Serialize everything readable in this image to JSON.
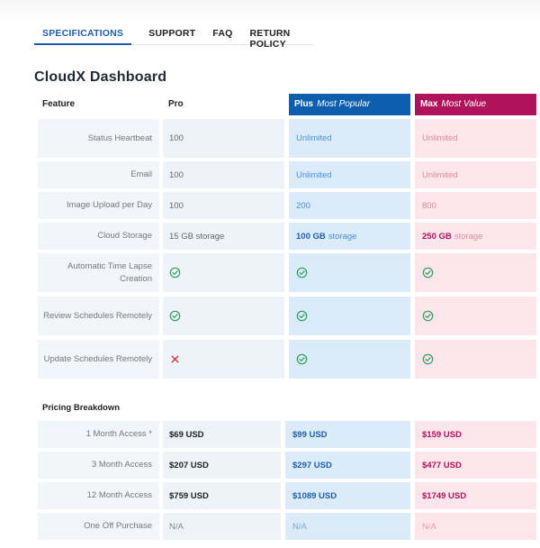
{
  "tabs": [
    {
      "label": "SPECIFICATIONS",
      "active": true
    },
    {
      "label": "SUPPORT",
      "active": false
    },
    {
      "label": "FAQ",
      "active": false
    },
    {
      "label": "RETURN POLICY",
      "active": false
    }
  ],
  "page_title": "CloudX Dashboard",
  "columns": {
    "feature": "Feature",
    "pro": "Pro",
    "plus": {
      "name": "Plus",
      "tag": "Most Popular",
      "color": "#0d5fae"
    },
    "max": {
      "name": "Max",
      "tag": "Most Value",
      "color": "#b0125c"
    }
  },
  "features": [
    {
      "label": "Status Heartbeat",
      "pro": "100",
      "plus": "Unlimited",
      "max": "Unlimited"
    },
    {
      "label": "Email",
      "pro": "100",
      "plus": "Unlimited",
      "max": "Unlimited"
    },
    {
      "label": "Image Upload per Day",
      "pro": "100",
      "plus": "200",
      "max": "800"
    },
    {
      "label": "Cloud Storage",
      "pro": "15 GB storage",
      "plus_bold": "100 GB",
      "plus_rest": "storage",
      "max_bold": "250 GB",
      "max_rest": "storage"
    },
    {
      "label": "Automatic Time Lapse Creation",
      "pro_icon": "check-circle-icon",
      "plus_icon": "check-circle-icon",
      "max_icon": "check-circle-icon"
    },
    {
      "label": "Review Schedules Remotely",
      "pro_icon": "check-circle-icon",
      "plus_icon": "check-circle-icon",
      "max_icon": "check-circle-icon"
    },
    {
      "label": "Update Schedules Remotely",
      "pro_icon": "cross-icon",
      "plus_icon": "check-circle-icon",
      "max_icon": "check-circle-icon"
    }
  ],
  "pricing": {
    "heading": "Pricing Breakdown",
    "rows": [
      {
        "label": "1 Month Access *",
        "pro": "$69 USD",
        "plus": "$99 USD",
        "max": "$159 USD"
      },
      {
        "label": "3 Month Access",
        "pro": "$207 USD",
        "plus": "$297 USD",
        "max": "$477 USD"
      },
      {
        "label": "12 Month Access",
        "pro": "$759 USD",
        "plus": "$1089 USD",
        "max": "$1749 USD"
      },
      {
        "label": "One Off Purchase",
        "pro": "N/A",
        "plus": "N/A",
        "max": "N/A"
      }
    ]
  },
  "colors": {
    "accent": "#1e5faa",
    "check": "#2e9e5b",
    "cross": "#d9283a"
  }
}
